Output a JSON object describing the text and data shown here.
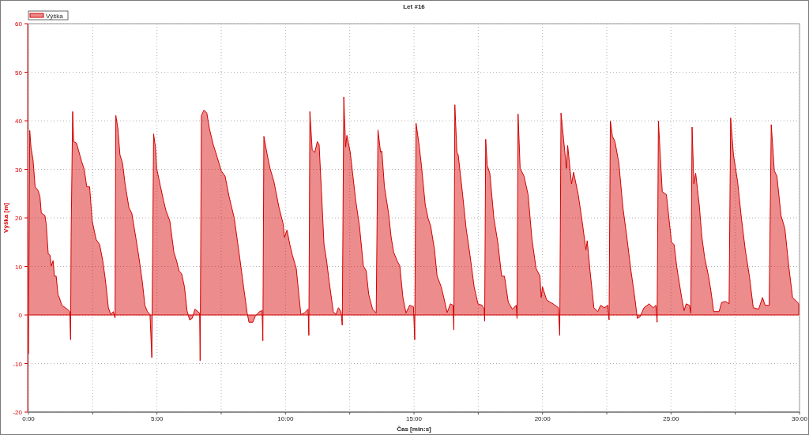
{
  "chart_data": {
    "type": "area",
    "title": "Let #16",
    "xlabel": "Čas [min:s]",
    "ylabel": "Výška [m]",
    "x": [
      0,
      0.05,
      0.1,
      0.18,
      0.26,
      0.38,
      0.45,
      0.5,
      0.64,
      0.69,
      0.77,
      0.84,
      0.89,
      0.96,
      1.01,
      1.08,
      1.15,
      1.2,
      1.3,
      1.51,
      1.61,
      1.64,
      1.66,
      1.72,
      1.76,
      1.87,
      1.97,
      2.07,
      2.17,
      2.27,
      2.38,
      2.48,
      2.63,
      2.77,
      2.89,
      2.99,
      3.11,
      3.2,
      3.3,
      3.37,
      3.4,
      3.48,
      3.56,
      3.66,
      3.76,
      3.91,
      4.02,
      4.12,
      4.27,
      4.43,
      4.53,
      4.63,
      4.73,
      4.8,
      4.87,
      4.94,
      4.99,
      5.14,
      5.25,
      5.35,
      5.5,
      5.66,
      5.76,
      5.86,
      5.96,
      6.07,
      6.17,
      6.27,
      6.37,
      6.48,
      6.66,
      6.68,
      6.73,
      6.83,
      6.94,
      7.04,
      7.19,
      7.35,
      7.5,
      7.65,
      7.81,
      8.01,
      8.22,
      8.37,
      8.51,
      8.58,
      8.73,
      8.83,
      8.99,
      9.09,
      9.12,
      9.16,
      9.29,
      9.4,
      9.55,
      9.75,
      9.91,
      9.96,
      10.06,
      10.17,
      10.27,
      10.42,
      10.52,
      10.6,
      10.73,
      10.88,
      10.91,
      10.95,
      11.04,
      11.14,
      11.24,
      11.31,
      11.4,
      11.5,
      11.6,
      11.7,
      11.86,
      11.96,
      12.06,
      12.16,
      12.21,
      12.27,
      12.34,
      12.39,
      12.52,
      12.73,
      12.88,
      13.03,
      13.14,
      13.24,
      13.39,
      13.53,
      13.6,
      13.7,
      13.75,
      13.85,
      14.01,
      14.11,
      14.21,
      14.36,
      14.45,
      14.57,
      14.69,
      14.83,
      14.98,
      15.03,
      15.08,
      15.19,
      15.29,
      15.44,
      15.55,
      15.65,
      15.8,
      15.9,
      16.06,
      16.16,
      16.29,
      16.42,
      16.52,
      16.55,
      16.59,
      16.67,
      16.72,
      16.88,
      17.03,
      17.18,
      17.34,
      17.49,
      17.65,
      17.73,
      17.75,
      17.79,
      17.85,
      17.95,
      18.11,
      18.26,
      18.41,
      18.52,
      18.67,
      18.83,
      18.98,
      19.01,
      19.05,
      19.13,
      19.28,
      19.44,
      19.59,
      19.75,
      19.9,
      19.95,
      20.0,
      20.16,
      20.31,
      20.41,
      20.62,
      20.67,
      20.72,
      20.82,
      20.93,
      20.98,
      21.13,
      21.21,
      21.39,
      21.54,
      21.69,
      21.74,
      21.85,
      22.0,
      22.15,
      22.26,
      22.41,
      22.54,
      22.59,
      22.64,
      22.72,
      22.82,
      22.97,
      23.13,
      23.28,
      23.43,
      23.59,
      23.69,
      23.79,
      23.95,
      24.15,
      24.31,
      24.41,
      24.46,
      24.51,
      24.58,
      24.66,
      24.82,
      24.92,
      25.02,
      25.12,
      25.22,
      25.28,
      25.43,
      25.51,
      25.59,
      25.72,
      25.77,
      25.82,
      25.89,
      25.96,
      26.1,
      26.2,
      26.31,
      26.46,
      26.56,
      26.66,
      26.87,
      26.97,
      27.12,
      27.26,
      27.32,
      27.43,
      27.59,
      27.74,
      27.89,
      28.05,
      28.2,
      28.41,
      28.56,
      28.66,
      28.82,
      28.9,
      29.02,
      29.12,
      29.28,
      29.43,
      29.58,
      29.73,
      29.89,
      29.97
    ],
    "series": [
      {
        "name": "Výška",
        "color": "#d40000",
        "values": [
          -8,
          38,
          34.5,
          31.9,
          26.4,
          25.6,
          24.3,
          21,
          20.5,
          18.8,
          12.6,
          12.3,
          10.1,
          11.2,
          8,
          8,
          4.2,
          3.6,
          2,
          1.2,
          0.7,
          -5.1,
          16,
          41.9,
          35.7,
          35.4,
          33.5,
          31.6,
          30,
          26.4,
          26.4,
          19.4,
          15.6,
          14.5,
          11.2,
          7.4,
          1.5,
          0.1,
          0.7,
          -0.6,
          41.1,
          38.4,
          33,
          31.3,
          27,
          22.1,
          21,
          17.8,
          12.9,
          6.9,
          2,
          0.7,
          0.1,
          -8.8,
          37.3,
          34.6,
          30.2,
          26.4,
          23.7,
          21.5,
          19.4,
          12.9,
          11.2,
          9.1,
          8.5,
          5.8,
          0.9,
          -1,
          -0.7,
          1.2,
          0.4,
          -9.4,
          41.1,
          42.2,
          41.6,
          38.4,
          35.1,
          32.4,
          29.7,
          28.6,
          24.3,
          19.9,
          11.8,
          5.8,
          0.4,
          -1.5,
          -1.5,
          -0.2,
          0.7,
          0.9,
          -5.3,
          36.8,
          33,
          30.2,
          27.5,
          22.1,
          18.8,
          16,
          17.5,
          14.5,
          12.3,
          9.6,
          4.2,
          0.1,
          0.4,
          1.2,
          -4.2,
          41.9,
          34,
          33.5,
          35.7,
          35.1,
          25.4,
          14.5,
          11.2,
          6.9,
          0.7,
          0.1,
          1.5,
          0.7,
          -2.1,
          44.9,
          34.6,
          37,
          33.5,
          23.7,
          18.3,
          10.1,
          9.1,
          4.2,
          1.2,
          0.4,
          38.1,
          33.5,
          33.8,
          26.4,
          21,
          16.1,
          12.9,
          11,
          10.1,
          3.6,
          0.4,
          2,
          1.7,
          -5.1,
          39.5,
          35.4,
          30.8,
          22.6,
          19.9,
          18.3,
          13.4,
          8,
          5.8,
          3.6,
          0.5,
          2.3,
          2,
          -3.1,
          43.3,
          33.5,
          33,
          25.4,
          17.8,
          12.3,
          5.8,
          2.3,
          2,
          1.2,
          -1.3,
          36.2,
          30.8,
          29.2,
          19.9,
          15,
          8,
          8,
          2.6,
          1.2,
          2,
          -0.7,
          41.4,
          30.2,
          28.6,
          24.8,
          15.6,
          9.6,
          8,
          3.6,
          5.8,
          3.1,
          2.6,
          2.3,
          1.5,
          -4.2,
          41.6,
          36.2,
          30.2,
          34.9,
          27,
          29.4,
          24.8,
          19.4,
          13.4,
          15.3,
          9.1,
          1.5,
          0.7,
          2,
          1.5,
          2,
          -1,
          40,
          36.8,
          35.7,
          31.3,
          22.1,
          16.1,
          9.6,
          3.6,
          -0.7,
          -0.4,
          1.5,
          2.3,
          1.5,
          2,
          -1.5,
          40,
          33,
          25.4,
          24.8,
          19.9,
          15,
          14.5,
          10.1,
          8,
          3.1,
          0.9,
          2.3,
          2,
          0.4,
          38.7,
          27,
          29.2,
          22.6,
          16.1,
          11.8,
          8,
          4.7,
          0.7,
          0.7,
          2.6,
          2.8,
          2.3,
          40.6,
          33,
          27.5,
          19.9,
          13.4,
          8,
          1.5,
          1.2,
          3.6,
          2,
          2,
          39.2,
          29.7,
          28.6,
          20.5,
          17.8,
          10.1,
          3.6,
          2.8,
          2.3
        ]
      }
    ],
    "xlim": [
      0,
      30
    ],
    "xticks": [
      {
        "value": 0,
        "label": "0:00"
      },
      {
        "value": 2.5,
        "label": null
      },
      {
        "value": 5,
        "label": "5:00"
      },
      {
        "value": 7.5,
        "label": null
      },
      {
        "value": 10,
        "label": "10:00"
      },
      {
        "value": 12.5,
        "label": null
      },
      {
        "value": 15,
        "label": "15:00"
      },
      {
        "value": 17.5,
        "label": null
      },
      {
        "value": 20,
        "label": "20:00"
      },
      {
        "value": 22.5,
        "label": null
      },
      {
        "value": 25,
        "label": "25:00"
      },
      {
        "value": 27.5,
        "label": null
      },
      {
        "value": 30,
        "label": "30:00"
      }
    ],
    "ylim": [
      -20,
      60
    ],
    "yticks": [
      -20,
      -10,
      0,
      10,
      20,
      30,
      40,
      50,
      60
    ],
    "grid": true,
    "legend": "top left"
  }
}
